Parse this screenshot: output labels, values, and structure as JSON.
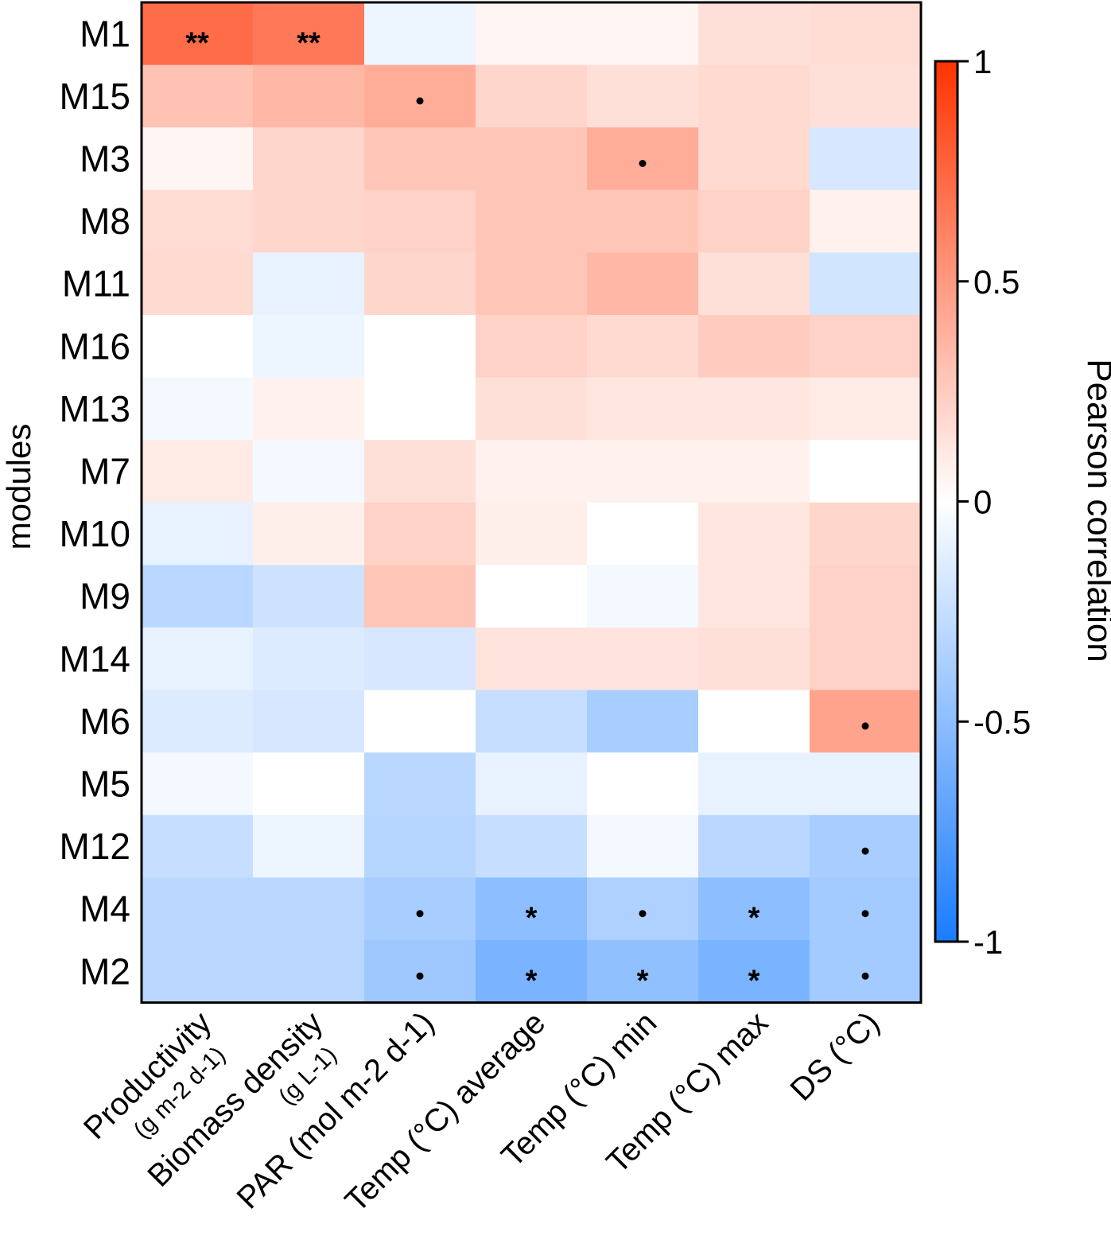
{
  "chart_data": {
    "type": "heatmap",
    "title": "",
    "ylabel": "modules",
    "legend_title": "Pearson correlation",
    "legend_position": "right",
    "color_range": [
      -1,
      1
    ],
    "legend_ticks": [
      {
        "value": 1,
        "label": "1"
      },
      {
        "value": 0.5,
        "label": "0.5"
      },
      {
        "value": 0,
        "label": "0"
      },
      {
        "value": -0.5,
        "label": "-0.5"
      },
      {
        "value": -1,
        "label": "-1"
      }
    ],
    "rows": [
      "M1",
      "M15",
      "M3",
      "M8",
      "M11",
      "M16",
      "M13",
      "M7",
      "M10",
      "M9",
      "M14",
      "M6",
      "M5",
      "M12",
      "M4",
      "M2"
    ],
    "columns": [
      {
        "main": "Productivity",
        "unit": "(g m-2 d-1)"
      },
      {
        "main": "Biomass density",
        "unit": "(g L-1)"
      },
      {
        "main": "PAR (mol m-2 d-1)",
        "unit": ""
      },
      {
        "main": "Temp (°C) average",
        "unit": ""
      },
      {
        "main": "Temp (°C) min",
        "unit": ""
      },
      {
        "main": "Temp (°C) max",
        "unit": ""
      },
      {
        "main": "DS (°C)",
        "unit": ""
      }
    ],
    "values": [
      [
        0.72,
        0.66,
        -0.08,
        0.05,
        0.05,
        0.15,
        0.17
      ],
      [
        0.3,
        0.35,
        0.4,
        0.2,
        0.15,
        0.18,
        0.15
      ],
      [
        0.05,
        0.2,
        0.28,
        0.28,
        0.4,
        0.18,
        -0.18
      ],
      [
        0.17,
        0.2,
        0.22,
        0.28,
        0.28,
        0.22,
        0.07
      ],
      [
        0.18,
        -0.1,
        0.2,
        0.28,
        0.35,
        0.15,
        -0.2
      ],
      [
        0.0,
        -0.08,
        0.0,
        0.22,
        0.18,
        0.25,
        0.22
      ],
      [
        -0.05,
        0.07,
        0.0,
        0.15,
        0.12,
        0.12,
        0.1
      ],
      [
        0.1,
        -0.05,
        0.15,
        0.07,
        0.07,
        0.07,
        0.0
      ],
      [
        -0.1,
        0.08,
        0.22,
        0.08,
        0.0,
        0.12,
        0.2
      ],
      [
        -0.3,
        -0.22,
        0.28,
        0.0,
        -0.05,
        0.12,
        0.22
      ],
      [
        -0.1,
        -0.15,
        -0.18,
        0.13,
        0.13,
        0.15,
        0.22
      ],
      [
        -0.15,
        -0.18,
        0.0,
        -0.25,
        -0.38,
        0.0,
        0.45
      ],
      [
        -0.05,
        0.0,
        -0.3,
        -0.1,
        0.0,
        -0.1,
        -0.1
      ],
      [
        -0.25,
        -0.08,
        -0.32,
        -0.25,
        -0.05,
        -0.3,
        -0.38
      ],
      [
        -0.3,
        -0.3,
        -0.38,
        -0.5,
        -0.35,
        -0.5,
        -0.4
      ],
      [
        -0.3,
        -0.3,
        -0.42,
        -0.58,
        -0.48,
        -0.58,
        -0.4
      ]
    ],
    "significance": [
      [
        "**",
        "**",
        "",
        "",
        "",
        "",
        ""
      ],
      [
        "",
        "",
        "•",
        "",
        "",
        "",
        ""
      ],
      [
        "",
        "",
        "",
        "",
        "•",
        "",
        ""
      ],
      [
        "",
        "",
        "",
        "",
        "",
        "",
        ""
      ],
      [
        "",
        "",
        "",
        "",
        "",
        "",
        ""
      ],
      [
        "",
        "",
        "",
        "",
        "",
        "",
        ""
      ],
      [
        "",
        "",
        "",
        "",
        "",
        "",
        ""
      ],
      [
        "",
        "",
        "",
        "",
        "",
        "",
        ""
      ],
      [
        "",
        "",
        "",
        "",
        "",
        "",
        ""
      ],
      [
        "",
        "",
        "",
        "",
        "",
        "",
        ""
      ],
      [
        "",
        "",
        "",
        "",
        "",
        "",
        ""
      ],
      [
        "",
        "",
        "",
        "",
        "",
        "",
        "•"
      ],
      [
        "",
        "",
        "",
        "",
        "",
        "",
        ""
      ],
      [
        "",
        "",
        "",
        "",
        "",
        "",
        "•"
      ],
      [
        "",
        "",
        "•",
        "*",
        "•",
        "*",
        "•"
      ],
      [
        "",
        "",
        "•",
        "*",
        "*",
        "*",
        "•"
      ]
    ],
    "colors": {
      "positive": "#ff3300",
      "zero": "#ffffff",
      "negative": "#1a7cff",
      "border": "#000000"
    }
  }
}
